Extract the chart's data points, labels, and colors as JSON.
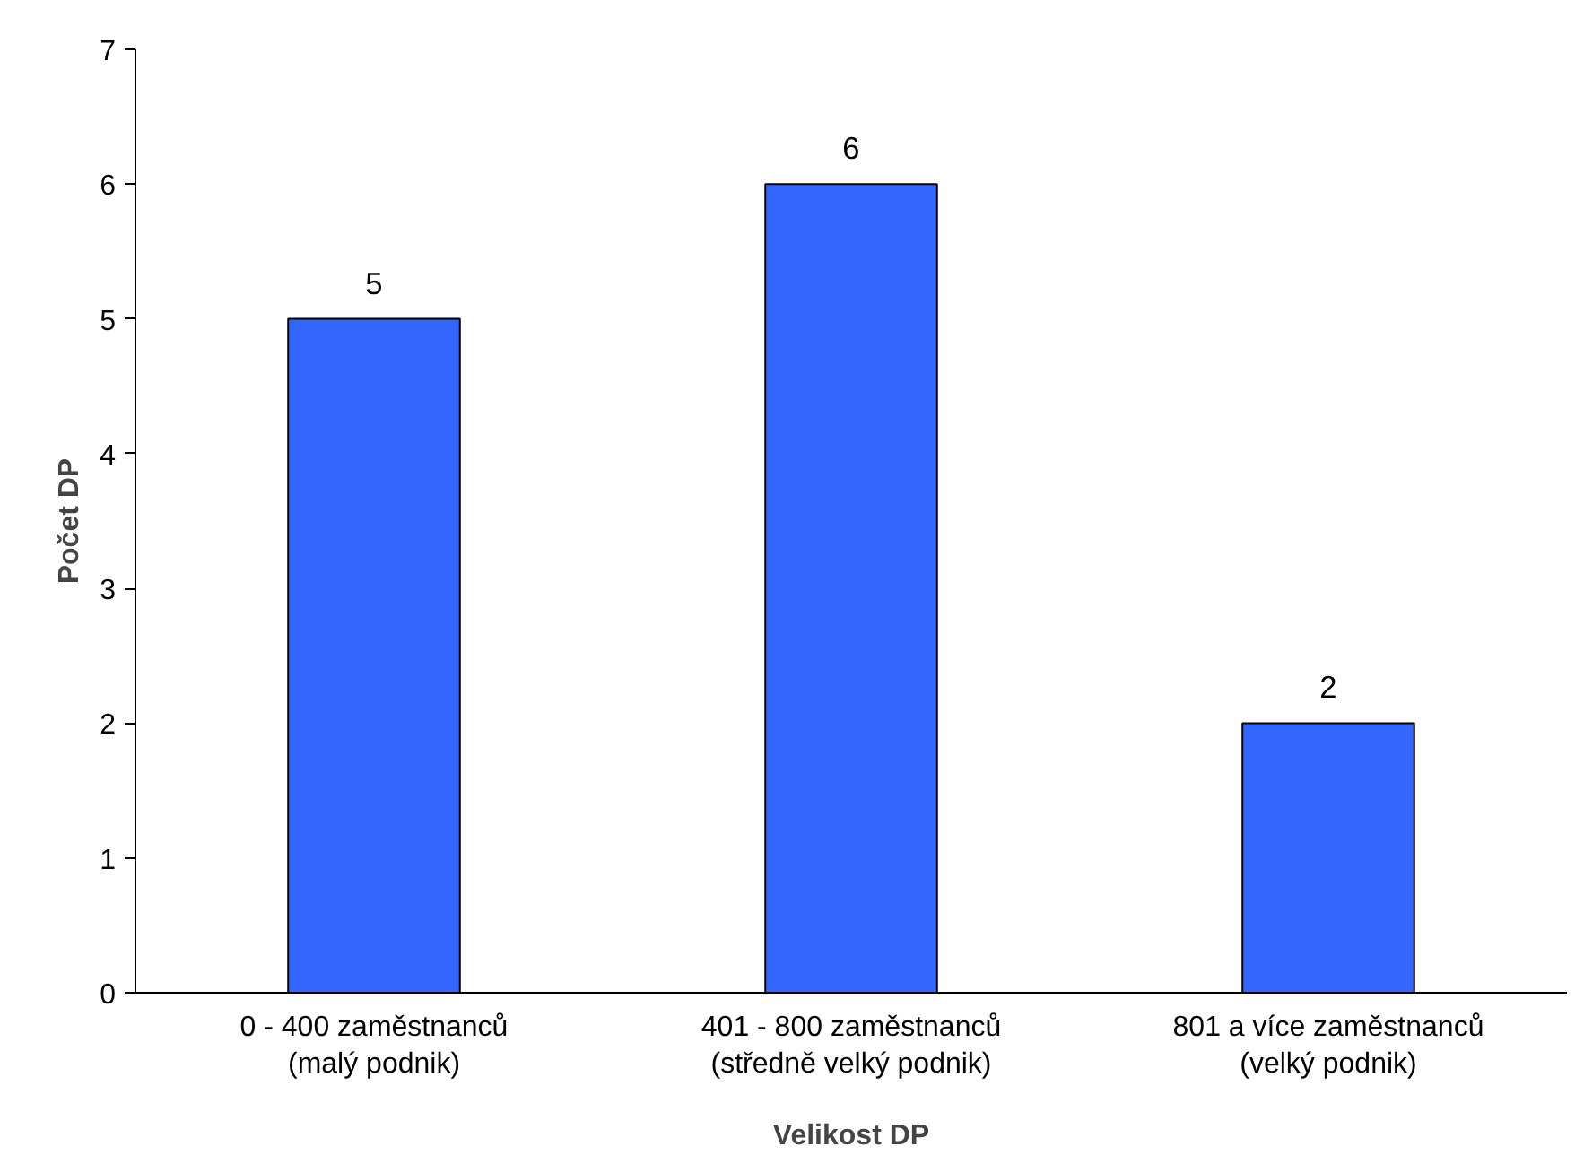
{
  "chart_data": {
    "type": "bar",
    "xlabel": "Velikost DP",
    "ylabel": "Počet DP",
    "categories": [
      "0 - 400 zaměstnanců\n(malý podnik)",
      "401 - 800 zaměstnanců\n(středně velký podnik)",
      "801 a více zaměstnanců\n(velký podnik)"
    ],
    "values": [
      5,
      6,
      2
    ],
    "color": "#3366ff",
    "ylim": [
      0,
      7
    ],
    "yticks": [
      0,
      1,
      2,
      3,
      4,
      5,
      6,
      7
    ],
    "grid": false,
    "data_labels": true
  }
}
